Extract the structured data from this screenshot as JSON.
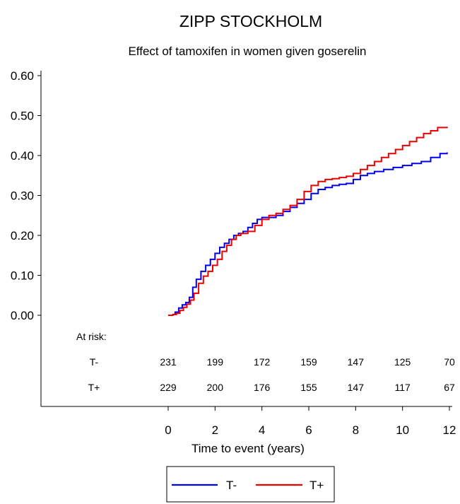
{
  "chart_data": {
    "type": "line",
    "title": "ZIPP STOCKHOLM",
    "subtitle": "Effect of tamoxifen in women given goserelin",
    "xlabel": "Time to event (years)",
    "ylabel": "",
    "xlim": [
      0,
      12
    ],
    "ylim": [
      0,
      0.6
    ],
    "x_ticks": [
      0,
      2,
      4,
      6,
      8,
      10,
      12
    ],
    "y_ticks": [
      0,
      0.1,
      0.2,
      0.3,
      0.4,
      0.5,
      0.6
    ],
    "y_tick_labels": [
      "0.00",
      "0.10",
      "0.20",
      "0.30",
      "0.40",
      "0.50",
      "0.60"
    ],
    "grid": false,
    "legend_position": "bottom-center",
    "step": true,
    "series": [
      {
        "name": "T-",
        "color": "#0000ee",
        "x": [
          0,
          0.2,
          0.3,
          0.45,
          0.6,
          0.75,
          0.9,
          1.05,
          1.2,
          1.4,
          1.6,
          1.8,
          2.0,
          2.2,
          2.4,
          2.6,
          2.8,
          3.0,
          3.2,
          3.4,
          3.6,
          3.8,
          4.0,
          4.3,
          4.6,
          4.9,
          5.2,
          5.5,
          5.8,
          6.1,
          6.4,
          6.7,
          7.0,
          7.3,
          7.6,
          7.9,
          8.2,
          8.5,
          8.8,
          9.2,
          9.6,
          10.0,
          10.4,
          10.8,
          11.2,
          11.6,
          11.9
        ],
        "values": [
          0,
          0.002,
          0.008,
          0.018,
          0.026,
          0.032,
          0.045,
          0.07,
          0.09,
          0.11,
          0.125,
          0.14,
          0.155,
          0.17,
          0.18,
          0.19,
          0.2,
          0.205,
          0.21,
          0.22,
          0.23,
          0.24,
          0.245,
          0.245,
          0.25,
          0.26,
          0.27,
          0.28,
          0.29,
          0.305,
          0.315,
          0.32,
          0.325,
          0.328,
          0.33,
          0.34,
          0.35,
          0.355,
          0.36,
          0.365,
          0.37,
          0.375,
          0.38,
          0.385,
          0.395,
          0.405,
          0.408
        ]
      },
      {
        "name": "T+",
        "color": "#ee0000",
        "x": [
          0,
          0.2,
          0.35,
          0.5,
          0.65,
          0.8,
          0.95,
          1.1,
          1.3,
          1.5,
          1.7,
          1.9,
          2.1,
          2.3,
          2.5,
          2.7,
          2.9,
          3.1,
          3.4,
          3.7,
          4.0,
          4.3,
          4.6,
          4.9,
          5.2,
          5.5,
          5.8,
          6.1,
          6.4,
          6.7,
          7.0,
          7.3,
          7.6,
          7.9,
          8.2,
          8.5,
          8.8,
          9.1,
          9.4,
          9.7,
          10.0,
          10.3,
          10.6,
          10.9,
          11.2,
          11.5,
          11.9
        ],
        "values": [
          0,
          0.002,
          0.005,
          0.012,
          0.02,
          0.028,
          0.038,
          0.055,
          0.08,
          0.098,
          0.11,
          0.125,
          0.14,
          0.16,
          0.175,
          0.19,
          0.2,
          0.205,
          0.21,
          0.225,
          0.24,
          0.25,
          0.255,
          0.265,
          0.275,
          0.29,
          0.31,
          0.325,
          0.335,
          0.34,
          0.342,
          0.345,
          0.348,
          0.355,
          0.365,
          0.375,
          0.385,
          0.395,
          0.405,
          0.415,
          0.425,
          0.435,
          0.445,
          0.455,
          0.462,
          0.47,
          0.472
        ]
      }
    ],
    "at_risk": {
      "label": "At risk:",
      "times": [
        0,
        2,
        4,
        6,
        8,
        10,
        12
      ],
      "rows": [
        {
          "group": "T-",
          "values": [
            "231",
            "199",
            "172",
            "159",
            "147",
            "125",
            "70"
          ]
        },
        {
          "group": "T+",
          "values": [
            "229",
            "200",
            "176",
            "155",
            "147",
            "117",
            "67"
          ]
        }
      ]
    }
  }
}
